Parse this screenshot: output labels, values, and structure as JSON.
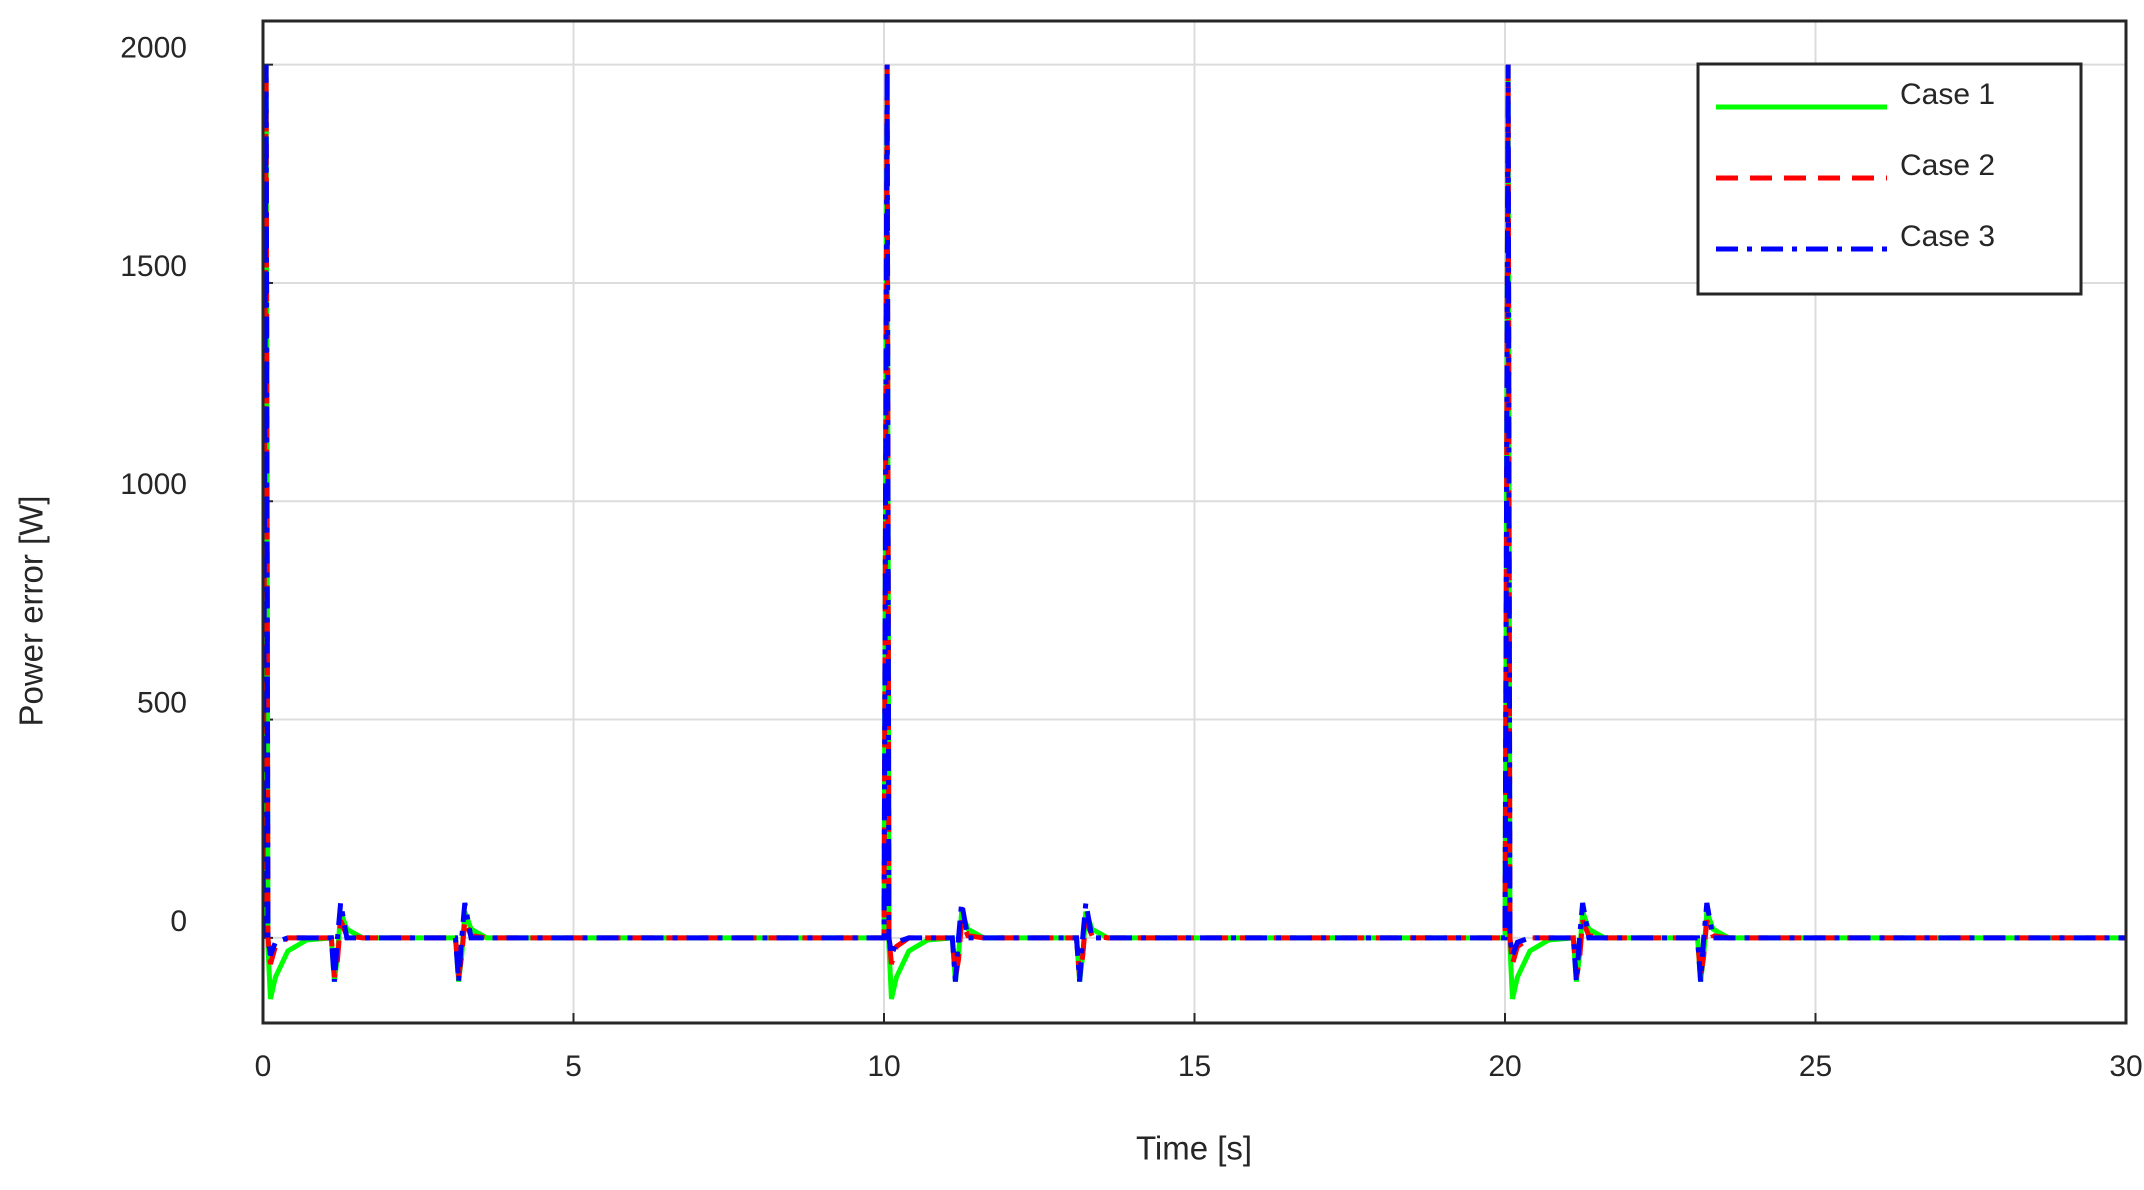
{
  "chart_data": {
    "type": "line",
    "x_label": "Time [s]",
    "y_label": "Power error [W]",
    "x": [
      0,
      0.05,
      0.08,
      0.12,
      0.2,
      0.4,
      0.7,
      1.1,
      1.15,
      1.2,
      1.25,
      1.35,
      1.6,
      3.1,
      3.15,
      3.2,
      3.25,
      3.35,
      3.6,
      9.9,
      10,
      10.05,
      10.08,
      10.12,
      10.2,
      10.4,
      10.7,
      11.1,
      11.15,
      11.2,
      11.25,
      11.35,
      11.6,
      13.1,
      13.15,
      13.2,
      13.25,
      13.35,
      13.6,
      19.9,
      20,
      20.05,
      20.08,
      20.12,
      20.2,
      20.4,
      20.7,
      21.1,
      21.15,
      21.2,
      21.25,
      21.35,
      21.6,
      23.1,
      23.15,
      23.2,
      23.25,
      23.35,
      23.6,
      29.9,
      30
    ],
    "series": [
      {
        "name": "Case 1",
        "color": "#00ff00",
        "dash": "solid",
        "values": [
          0,
          2000,
          -20,
          -140,
          -90,
          -30,
          -5,
          0,
          -100,
          -40,
          60,
          20,
          0,
          0,
          -100,
          -40,
          60,
          20,
          0,
          0,
          0,
          2000,
          -20,
          -140,
          -90,
          -30,
          -5,
          0,
          -100,
          -40,
          60,
          20,
          0,
          0,
          -100,
          -40,
          60,
          20,
          0,
          0,
          0,
          2000,
          -20,
          -140,
          -90,
          -30,
          -5,
          0,
          -100,
          -40,
          60,
          20,
          0,
          0,
          -100,
          -40,
          60,
          20,
          0,
          0,
          0
        ]
      },
      {
        "name": "Case 2",
        "color": "#ff0000",
        "dash": "dashed",
        "values": [
          0,
          2000,
          0,
          -60,
          -20,
          0,
          0,
          0,
          -90,
          -50,
          40,
          5,
          0,
          0,
          -90,
          -40,
          40,
          5,
          0,
          0,
          0,
          2000,
          0,
          -60,
          -20,
          0,
          0,
          0,
          -90,
          -50,
          40,
          5,
          0,
          0,
          -90,
          -40,
          40,
          5,
          0,
          0,
          0,
          2000,
          0,
          -60,
          -20,
          0,
          0,
          0,
          -90,
          -50,
          40,
          5,
          0,
          0,
          -90,
          -40,
          40,
          5,
          0,
          0,
          0
        ]
      },
      {
        "name": "Case 3",
        "color": "#0000ff",
        "dash": "dashdot",
        "values": [
          0,
          2000,
          0,
          -40,
          -10,
          0,
          0,
          0,
          -100,
          0,
          80,
          0,
          0,
          0,
          -100,
          0,
          80,
          0,
          0,
          0,
          0,
          2000,
          0,
          -40,
          -10,
          0,
          0,
          0,
          -100,
          0,
          80,
          0,
          0,
          0,
          -100,
          0,
          80,
          0,
          0,
          0,
          0,
          2000,
          0,
          -40,
          -10,
          0,
          0,
          0,
          -100,
          0,
          80,
          0,
          0,
          0,
          -100,
          0,
          80,
          0,
          0,
          0,
          0
        ]
      }
    ],
    "xlim": [
      0,
      30
    ],
    "xticks": [
      0,
      5,
      10,
      15,
      20,
      25,
      30
    ],
    "ylim": [
      -195,
      2100
    ],
    "yticks": [
      0,
      500,
      1000,
      1500,
      2000
    ],
    "grid": true,
    "legend": "upper right"
  }
}
